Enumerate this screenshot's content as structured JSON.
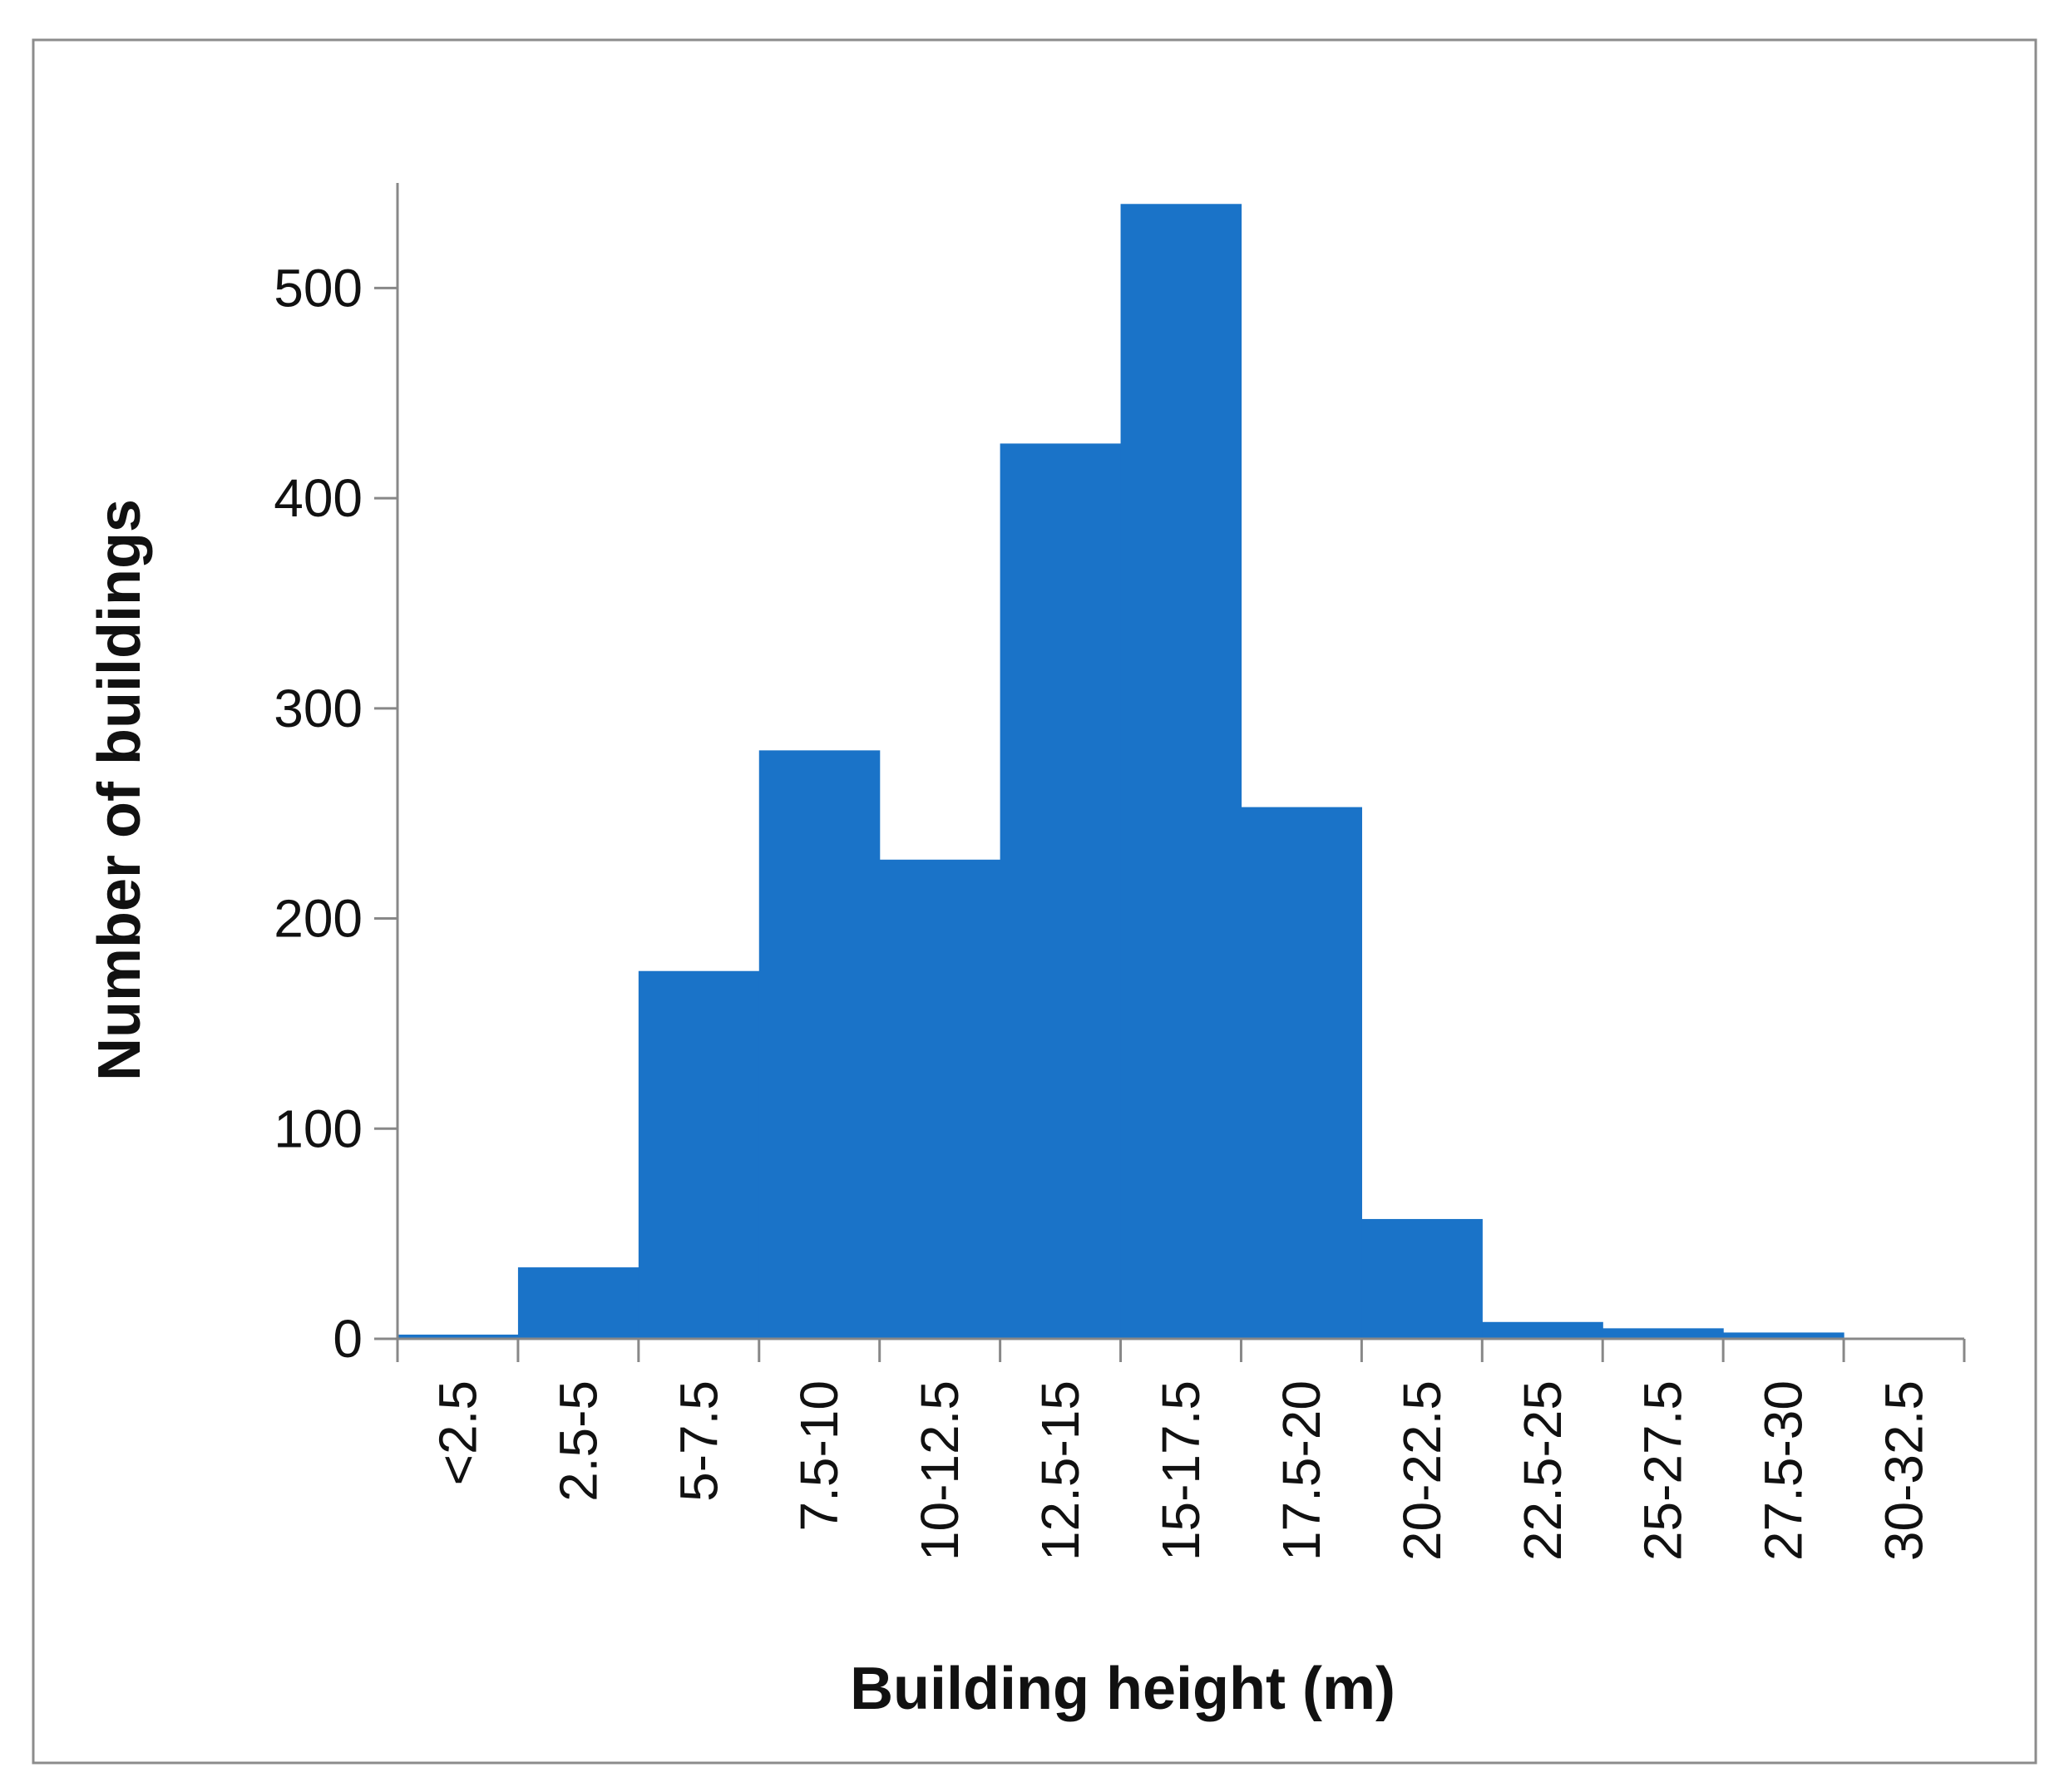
{
  "chart_data": {
    "type": "bar",
    "title": "",
    "xlabel": "Building height (m)",
    "ylabel": "Number of buildings",
    "categories": [
      "<2.5",
      "2.5-5",
      "5-7.5",
      "7.5-10",
      "10-12.5",
      "12.5-15",
      "15-17.5",
      "17.5-20",
      "20-22.5",
      "22.5-25",
      "25-27.5",
      "27.5-30",
      "30-32.5"
    ],
    "values": [
      2,
      34,
      175,
      280,
      228,
      426,
      540,
      253,
      57,
      8,
      5,
      3,
      0
    ],
    "ylim": [
      0,
      550
    ],
    "yticks": [
      0,
      100,
      200,
      300,
      400,
      500
    ],
    "bar_color": "#1a73c8",
    "grid": false,
    "legend": false
  }
}
